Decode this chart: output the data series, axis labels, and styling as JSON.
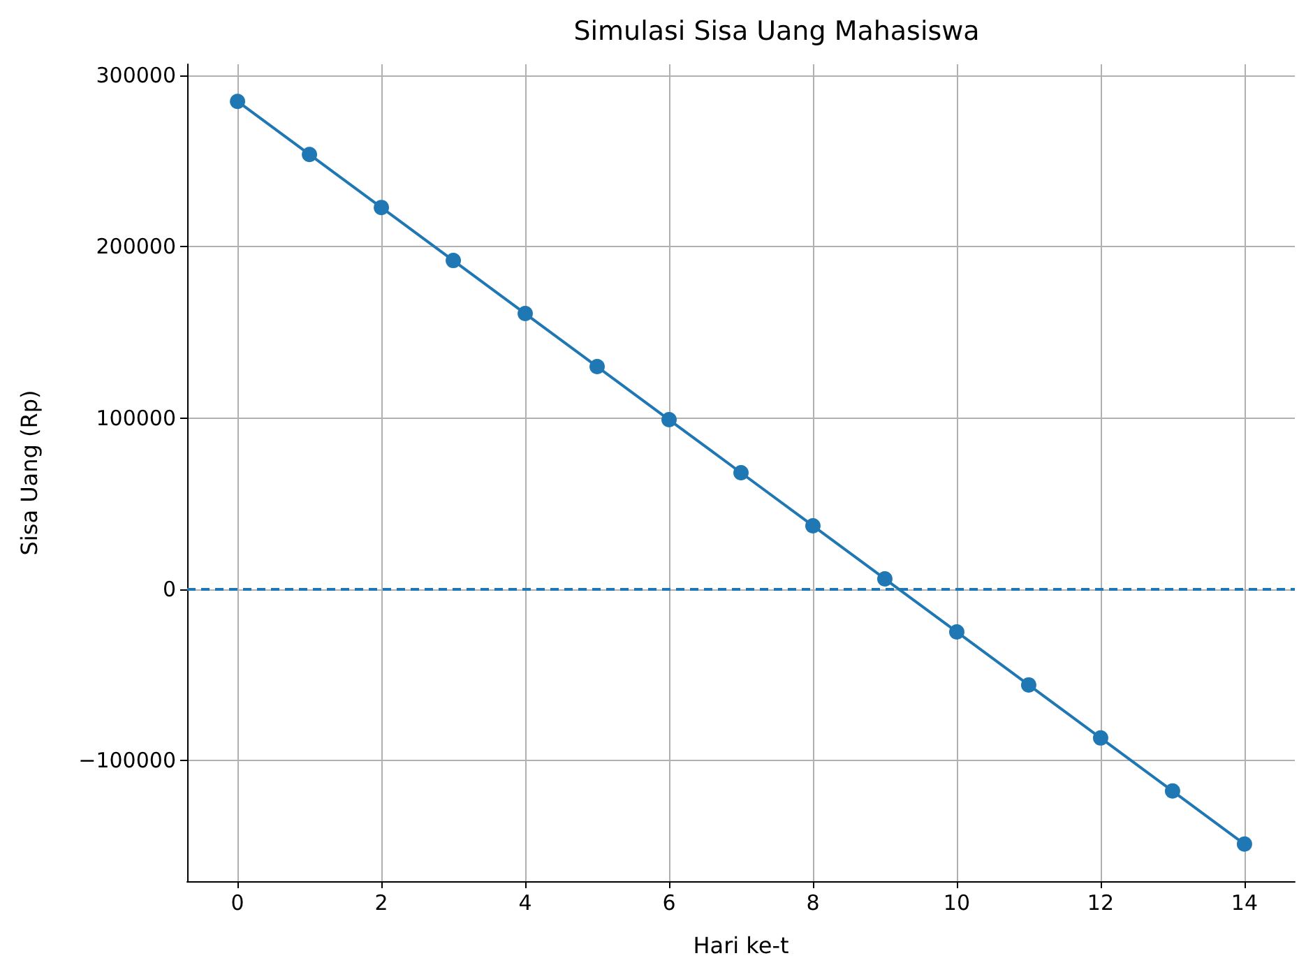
{
  "chart_data": {
    "type": "line",
    "title": "Simulasi Sisa Uang Mahasiswa",
    "xlabel": "Hari ke-t",
    "ylabel": "Sisa Uang (Rp)",
    "x": [
      0,
      1,
      2,
      3,
      4,
      5,
      6,
      7,
      8,
      9,
      10,
      11,
      12,
      13,
      14
    ],
    "series": [
      {
        "color": "#1f77b4",
        "values": [
          285000,
          254000,
          223000,
          192000,
          161000,
          130000,
          99000,
          68000,
          37000,
          6000,
          -25000,
          -56000,
          -87000,
          -118000,
          -149000
        ]
      }
    ],
    "xlim": [
      -0.7,
      14.7
    ],
    "xticks": [
      0,
      2,
      4,
      6,
      8,
      10,
      12,
      14
    ],
    "ylim": [
      -170700,
      306700
    ],
    "yticks": [
      -100000,
      0,
      100000,
      200000,
      300000
    ],
    "ref_lines": [
      {
        "axis": "y",
        "value": 0,
        "color": "#1f77b4",
        "line_style": "dashed"
      }
    ],
    "grid": true,
    "marker": "circle",
    "line_style": "solid"
  }
}
